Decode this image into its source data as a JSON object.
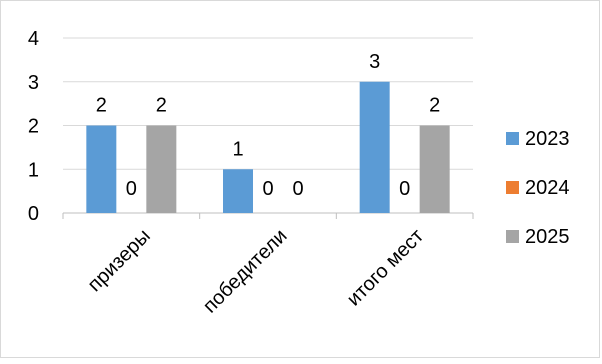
{
  "chart_data": {
    "type": "bar",
    "categories": [
      "призеры",
      "победители",
      "итого мест"
    ],
    "series": [
      {
        "name": "2023",
        "values": [
          2,
          1,
          3
        ],
        "color": "#5b9bd5"
      },
      {
        "name": "2024",
        "values": [
          0,
          0,
          0
        ],
        "color": "#ed7d31"
      },
      {
        "name": "2025",
        "values": [
          2,
          0,
          2
        ],
        "color": "#a5a5a5"
      }
    ],
    "ylim": [
      0,
      4
    ],
    "yticks": [
      0,
      1,
      2,
      3,
      4
    ],
    "grid": true,
    "legend_position": "right",
    "data_labels": true,
    "title": "",
    "xlabel": "",
    "ylabel": ""
  }
}
